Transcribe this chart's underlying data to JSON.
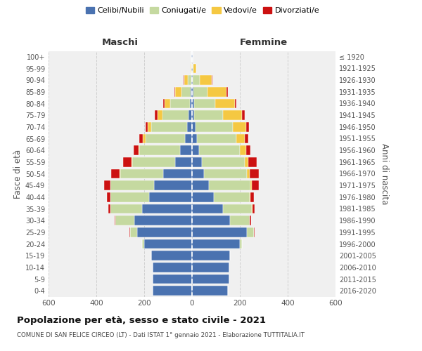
{
  "age_groups": [
    "0-4",
    "5-9",
    "10-14",
    "15-19",
    "20-24",
    "25-29",
    "30-34",
    "35-39",
    "40-44",
    "45-49",
    "50-54",
    "55-59",
    "60-64",
    "65-69",
    "70-74",
    "75-79",
    "80-84",
    "85-89",
    "90-94",
    "95-99",
    "100+"
  ],
  "birth_years": [
    "2016-2020",
    "2011-2015",
    "2006-2010",
    "2001-2005",
    "1996-2000",
    "1991-1995",
    "1986-1990",
    "1981-1985",
    "1976-1980",
    "1971-1975",
    "1966-1970",
    "1961-1965",
    "1956-1960",
    "1951-1955",
    "1946-1950",
    "1941-1945",
    "1936-1940",
    "1931-1935",
    "1926-1930",
    "1921-1925",
    "≤ 1920"
  ],
  "colors": {
    "celibi": "#4a72b0",
    "coniugati": "#c5d9a0",
    "vedovi": "#f5c842",
    "divorziati": "#cc1111"
  },
  "maschi": {
    "celibi": [
      165,
      165,
      165,
      170,
      200,
      230,
      240,
      210,
      180,
      160,
      120,
      70,
      50,
      30,
      20,
      15,
      10,
      5,
      3,
      2,
      2
    ],
    "coniugati": [
      0,
      0,
      0,
      0,
      10,
      30,
      80,
      130,
      160,
      180,
      180,
      180,
      170,
      165,
      150,
      110,
      80,
      40,
      15,
      2,
      0
    ],
    "vedovi": [
      0,
      0,
      0,
      0,
      0,
      0,
      0,
      1,
      1,
      2,
      2,
      3,
      5,
      10,
      15,
      20,
      25,
      25,
      15,
      3,
      1
    ],
    "divorziati": [
      0,
      0,
      0,
      0,
      0,
      2,
      5,
      10,
      15,
      25,
      35,
      35,
      18,
      15,
      10,
      10,
      5,
      5,
      2,
      0,
      0
    ]
  },
  "femmine": {
    "nubili": [
      150,
      155,
      155,
      160,
      200,
      230,
      160,
      130,
      90,
      70,
      50,
      40,
      30,
      20,
      15,
      10,
      8,
      5,
      3,
      2,
      2
    ],
    "coniugate": [
      0,
      0,
      0,
      0,
      10,
      30,
      80,
      120,
      150,
      175,
      180,
      180,
      170,
      165,
      155,
      120,
      90,
      60,
      30,
      5,
      0
    ],
    "vedove": [
      0,
      0,
      0,
      0,
      0,
      0,
      1,
      2,
      3,
      5,
      10,
      15,
      25,
      35,
      55,
      80,
      80,
      80,
      50,
      10,
      1
    ],
    "divorziate": [
      0,
      0,
      0,
      0,
      0,
      2,
      5,
      10,
      15,
      30,
      40,
      35,
      20,
      15,
      12,
      12,
      8,
      5,
      3,
      0,
      0
    ]
  },
  "title": "Popolazione per età, sesso e stato civile - 2021",
  "subtitle": "COMUNE DI SAN FELICE CIRCEO (LT) - Dati ISTAT 1° gennaio 2021 - Elaborazione TUTTITALIA.IT",
  "xlabel_left": "Maschi",
  "xlabel_right": "Femmine",
  "ylabel_left": "Fasce di età",
  "ylabel_right": "Anni di nascita",
  "xlim": 600,
  "bg_color": "#f0f0f0",
  "grid_color": "#cccccc"
}
